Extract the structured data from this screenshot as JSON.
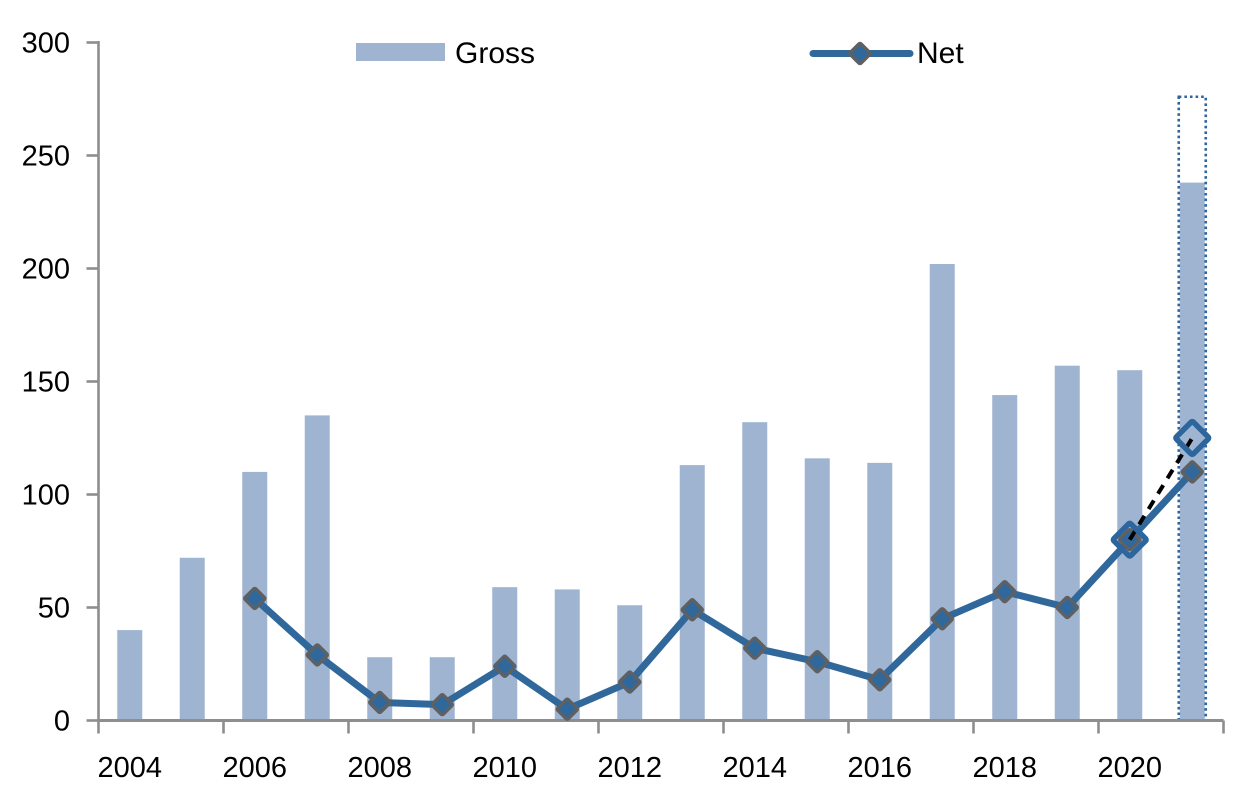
{
  "chart_data": {
    "type": "combo-bar-line",
    "title": "",
    "categories": [
      2004,
      2005,
      2006,
      2007,
      2008,
      2009,
      2010,
      2011,
      2012,
      2013,
      2014,
      2015,
      2016,
      2017,
      2018,
      2019,
      2020,
      2021
    ],
    "y_axis": {
      "ticks": [
        0,
        50,
        100,
        150,
        200,
        250,
        300
      ],
      "min": 0,
      "max": 300,
      "grid": "off"
    },
    "x_axis": {
      "tick_labels": [
        "2004",
        "2006",
        "2008",
        "2010",
        "2012",
        "2014",
        "2016",
        "2018",
        "2020"
      ]
    },
    "legend": {
      "position": "top",
      "items": [
        "Gross",
        "Net"
      ]
    },
    "series": [
      {
        "name": "Gross",
        "type": "bar",
        "color": "#9FB4D1",
        "values": [
          40,
          72,
          110,
          135,
          28,
          28,
          59,
          58,
          51,
          113,
          132,
          116,
          114,
          202,
          144,
          157,
          155,
          238
        ]
      },
      {
        "name": "Net",
        "type": "line",
        "color": "#31689B",
        "marker": "diamond",
        "marker_border_color": "#606060",
        "values": [
          null,
          null,
          54,
          29,
          8,
          7,
          24,
          5,
          17,
          49,
          32,
          26,
          18,
          45,
          57,
          50,
          80,
          110
        ]
      }
    ],
    "forecast_2021": {
      "gross_projected_top": 276,
      "gross_actual": 238,
      "net_projected": 125,
      "net_dashed_from": {
        "year": 2020,
        "value": 80
      },
      "style": {
        "bar_outline": "dotted-blue",
        "projection_line": "dashed-black",
        "projection_marker": "open-diamond"
      }
    },
    "colors": {
      "bar": "#9FB4D1",
      "line": "#31689B",
      "marker_border": "#606060",
      "axis": "#8E8E8E",
      "forecast_outline": "#2D659D",
      "forecast_dash": "#000000",
      "text": "#000000",
      "background": "#FFFFFF"
    }
  }
}
